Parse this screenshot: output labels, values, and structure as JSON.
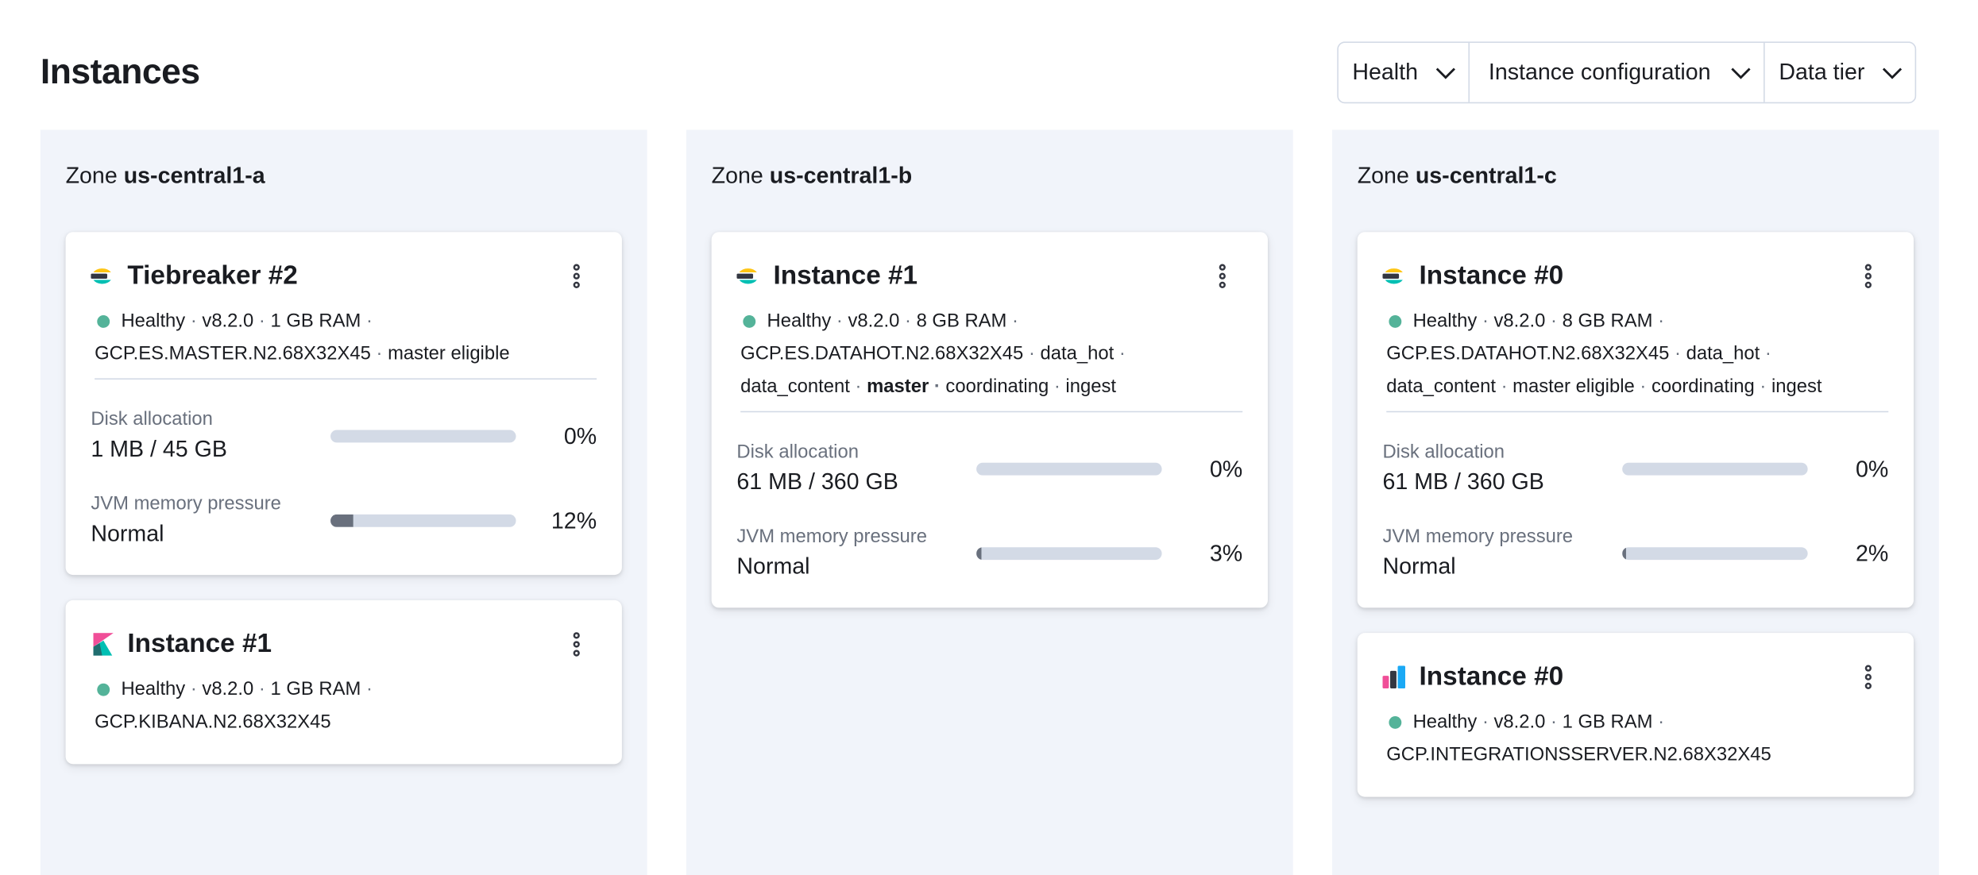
{
  "header": {
    "title": "Instances"
  },
  "filters": [
    "Health",
    "Instance configuration",
    "Data tier"
  ],
  "zones": [
    {
      "label": "Zone",
      "name": "us-central1-a",
      "instances": [
        {
          "name": "Tiebreaker #2",
          "status": "Healthy",
          "details": [
            "v8.2.0",
            "1 GB RAM",
            "GCP.ES.MASTER.N2.68X32X45",
            "master eligible"
          ],
          "metrics": [
            {
              "label": "Disk allocation",
              "value": "1 MB / 45 GB",
              "percent": 0,
              "percent_label": "0%"
            },
            {
              "label": "JVM memory pressure",
              "value": "Normal",
              "percent": 12,
              "percent_label": "12%"
            }
          ]
        },
        {
          "name": "Instance #1",
          "status": "Healthy",
          "details": [
            "v8.2.0",
            "1 GB RAM",
            "GCP.KIBANA.N2.68X32X45"
          ]
        }
      ]
    },
    {
      "label": "Zone",
      "name": "us-central1-b",
      "instances": [
        {
          "name": "Instance #1",
          "status": "Healthy",
          "details": [
            "v8.2.0",
            "8 GB RAM",
            "GCP.ES.DATAHOT.N2.68X32X45",
            "data_hot",
            "data_content",
            "master",
            "coordinating",
            "ingest"
          ],
          "metrics": [
            {
              "label": "Disk allocation",
              "value": "61 MB / 360 GB",
              "percent": 0,
              "percent_label": "0%"
            },
            {
              "label": "JVM memory pressure",
              "value": "Normal",
              "percent": 3,
              "percent_label": "3%"
            }
          ]
        }
      ]
    },
    {
      "label": "Zone",
      "name": "us-central1-c",
      "instances": [
        {
          "name": "Instance #0",
          "status": "Healthy",
          "details": [
            "v8.2.0",
            "8 GB RAM",
            "GCP.ES.DATAHOT.N2.68X32X45",
            "data_hot",
            "data_content",
            "master eligible",
            "coordinating",
            "ingest"
          ],
          "metrics": [
            {
              "label": "Disk allocation",
              "value": "61 MB / 360 GB",
              "percent": 0,
              "percent_label": "0%"
            },
            {
              "label": "JVM memory pressure",
              "value": "Normal",
              "percent": 2,
              "percent_label": "2%"
            }
          ]
        },
        {
          "name": "Instance #0",
          "status": "Healthy",
          "details": [
            "v8.2.0",
            "1 GB RAM",
            "GCP.INTEGRATIONSSERVER.N2.68X32X45"
          ]
        }
      ]
    }
  ]
}
